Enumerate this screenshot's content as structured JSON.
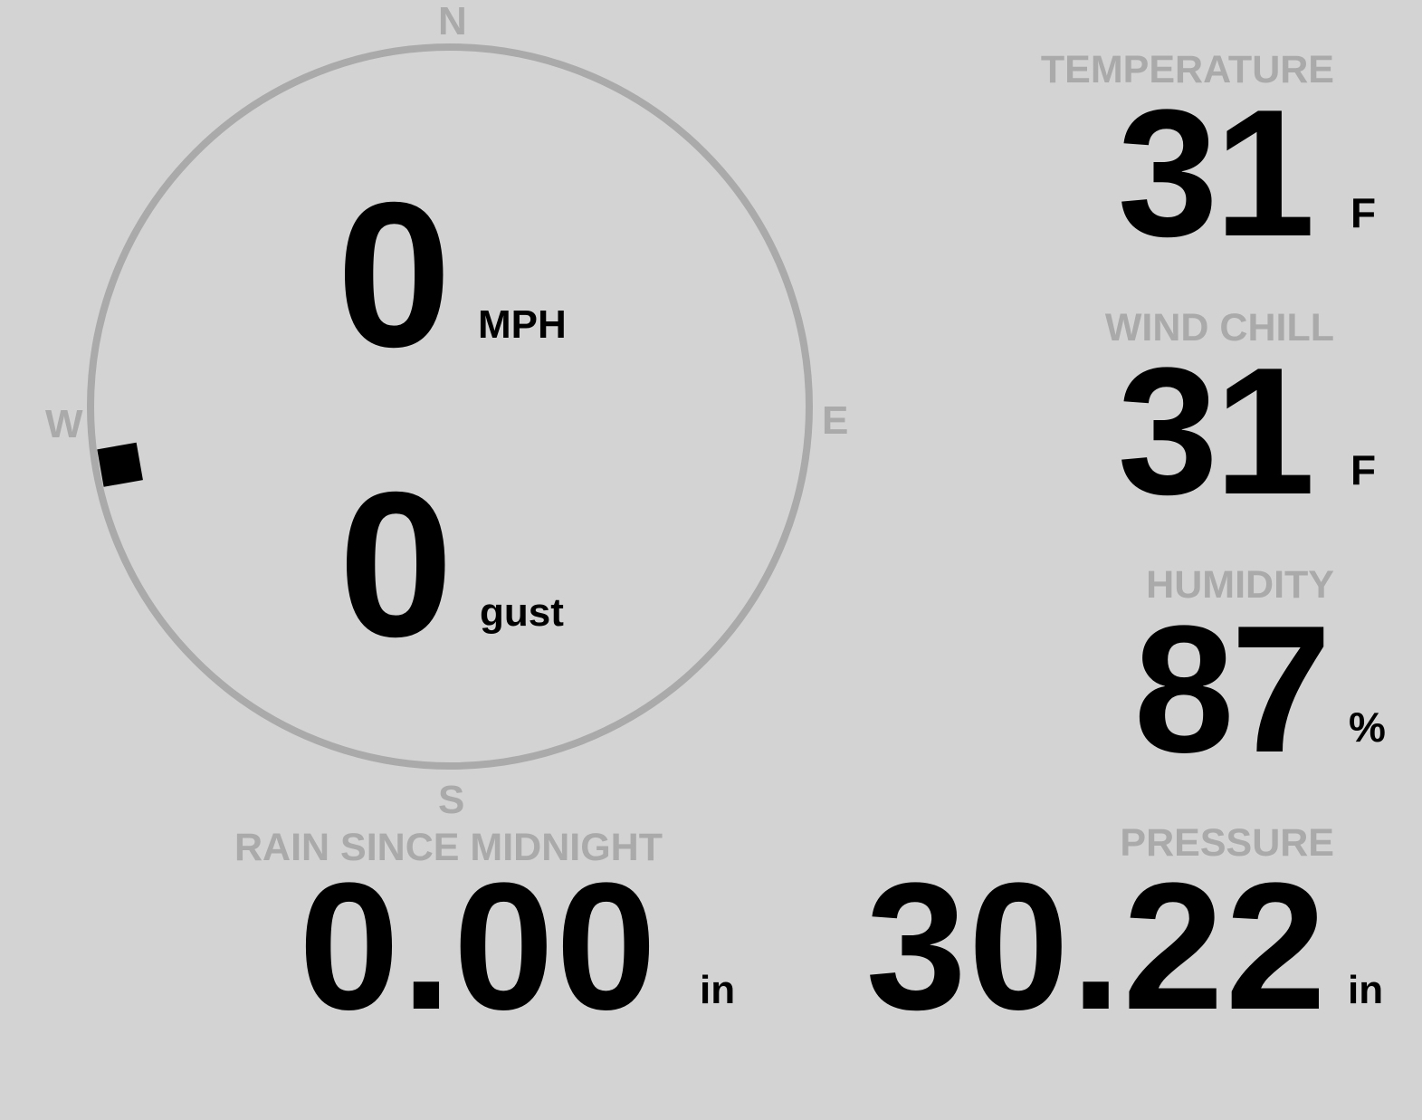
{
  "colors": {
    "background": "#d3d3d3",
    "label": "#aaaaaa",
    "value": "#000000",
    "compass_ring": "#aaaaaa"
  },
  "compass": {
    "directions": {
      "n": "N",
      "e": "E",
      "s": "S",
      "w": "W"
    },
    "wind_direction_deg": 260,
    "speed": "0",
    "speed_unit": "MPH",
    "gust": "0",
    "gust_unit": "gust"
  },
  "temperature": {
    "label": "TEMPERATURE",
    "value": "31",
    "unit": "F"
  },
  "wind_chill": {
    "label": "WIND CHILL",
    "value": "31",
    "unit": "F"
  },
  "humidity": {
    "label": "HUMIDITY",
    "value": "87",
    "unit": "%"
  },
  "rain": {
    "label": "RAIN SINCE MIDNIGHT",
    "value": "0.00",
    "unit": "in"
  },
  "pressure": {
    "label": "PRESSURE",
    "value": "30.22",
    "unit": "in"
  }
}
